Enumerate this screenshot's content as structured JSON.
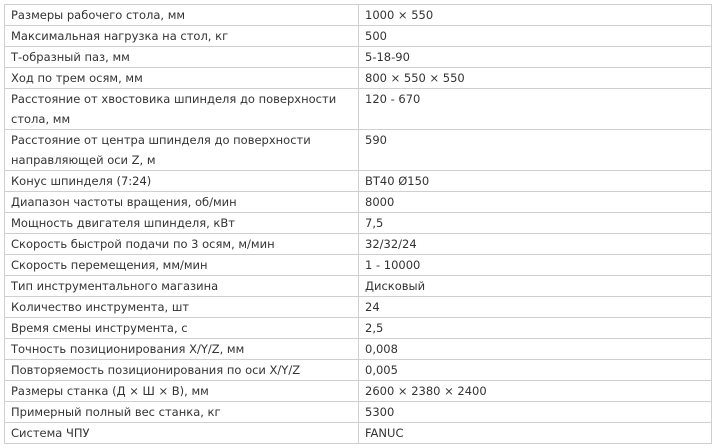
{
  "table": {
    "rows": [
      [
        "Размеры рабочего стола, мм",
        "1000 × 550"
      ],
      [
        "Максимальная нагрузка на стол, кг",
        "500"
      ],
      [
        "Т-образный паз, мм",
        "5-18-90"
      ],
      [
        "Ход по трем осям, мм",
        "800 × 550 × 550"
      ],
      [
        "Расстояние от хвостовика шпинделя до поверхности стола, мм",
        "120 - 670"
      ],
      [
        "Расстояние от центра шпинделя до поверхности направляющей оси Z, м",
        "590"
      ],
      [
        "Конус шпинделя (7:24)",
        "BT40 Ø150"
      ],
      [
        "Диапазон частоты вращения, об/мин",
        "8000"
      ],
      [
        "Мощность двигателя шпинделя, кВт",
        "7,5"
      ],
      [
        "Скорость быстрой подачи по 3 осям, м/мин",
        "32/32/24"
      ],
      [
        "Скорость перемещения, мм/мин",
        "1 - 10000"
      ],
      [
        "Тип инструментального магазина",
        "Дисковый"
      ],
      [
        "Количество инструмента, шт",
        "24"
      ],
      [
        "Время смены инструмента, с",
        "2,5"
      ],
      [
        "Точность позиционирования X/Y/Z, мм",
        "0,008"
      ],
      [
        "Повторяемость позиционирования по оси X/Y/Z",
        "0,005"
      ],
      [
        "Размеры станка (Д × Ш × В), мм",
        "2600 × 2380 × 2400"
      ],
      [
        "Примерный полный вес станка, кг",
        "5300"
      ],
      [
        "Система ЧПУ",
        "FANUC"
      ]
    ]
  }
}
